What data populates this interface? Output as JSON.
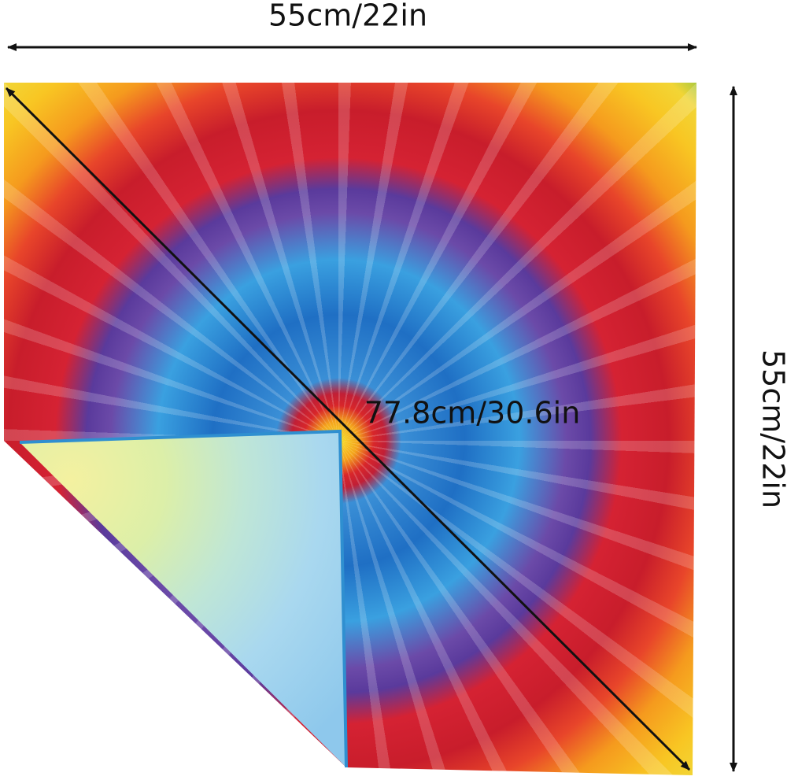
{
  "dimensions": {
    "width_label": "55cm/22in",
    "height_label": "55cm/22in",
    "diagonal_label": "77.8cm/30.6in"
  }
}
